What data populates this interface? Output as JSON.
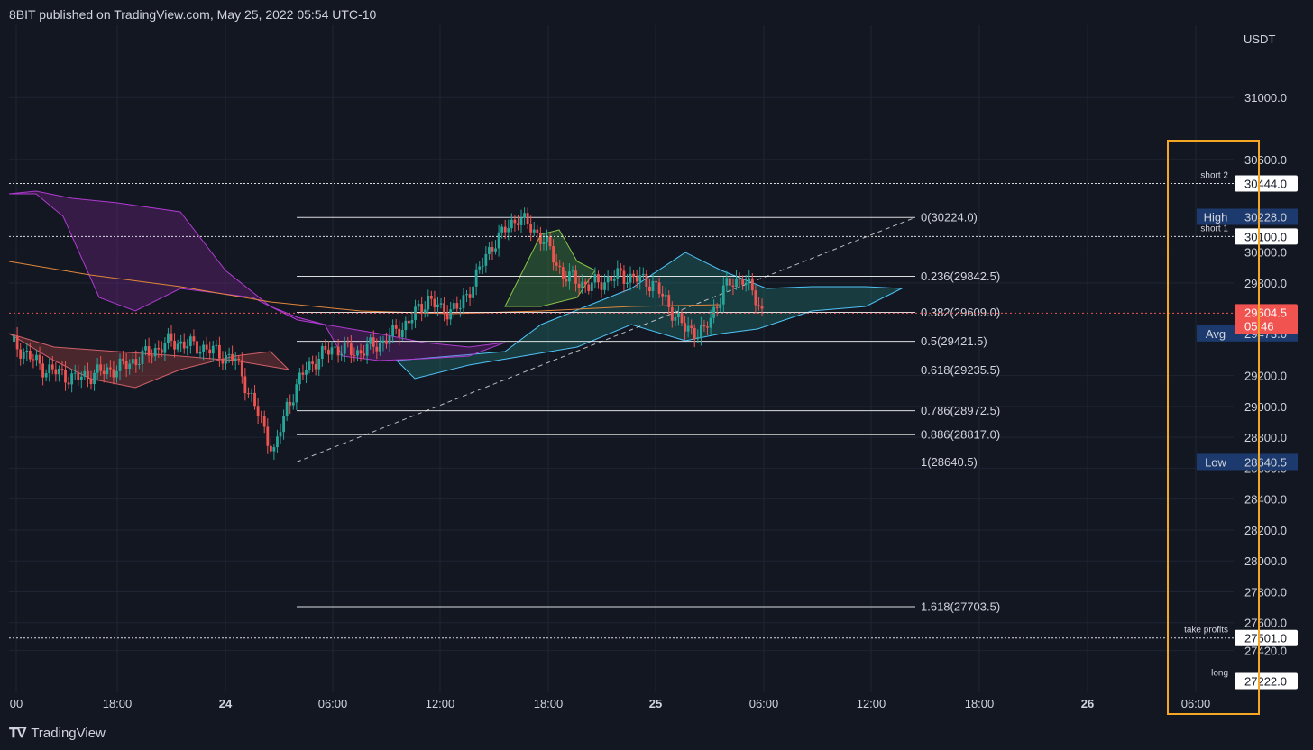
{
  "header": {
    "published": "8BIT published on TradingView.com, May 25, 2022 05:54 UTC-10"
  },
  "footer": {
    "brand": "TradingView",
    "logo_icon": "tradingview-logo-icon"
  },
  "colors": {
    "background": "#131722",
    "grid": "#1e2433",
    "text": "#d1d4dc",
    "up": "#26a69a",
    "down": "#ef5350",
    "fib": "#ffffff",
    "highlight_box": "#f5a623",
    "label_bg": "#1c3a6e",
    "price_tag": "#f05350"
  },
  "chart_data": {
    "type": "candlestick",
    "currency_label": "USDT",
    "ylim": [
      27100,
      31400
    ],
    "y_ticks": [
      "31000.0",
      "30600.0",
      "30000.0",
      "29800.0",
      "29200.0",
      "29000.0",
      "28800.0",
      "28600.0",
      "28400.0",
      "28200.0",
      "28000.0",
      "27800.0",
      "27600.0",
      "27420.0"
    ],
    "x_ticks": [
      {
        "label": "00",
        "bold": false
      },
      {
        "label": "18:00",
        "bold": false
      },
      {
        "label": "24",
        "bold": true
      },
      {
        "label": "06:00",
        "bold": false
      },
      {
        "label": "12:00",
        "bold": false
      },
      {
        "label": "18:00",
        "bold": false
      },
      {
        "label": "25",
        "bold": true
      },
      {
        "label": "06:00",
        "bold": false
      },
      {
        "label": "12:00",
        "bold": false
      },
      {
        "label": "18:00",
        "bold": false
      },
      {
        "label": "26",
        "bold": true
      },
      {
        "label": "06:00",
        "bold": false
      }
    ],
    "fib_levels": [
      {
        "ratio": "0",
        "price": 30224.0,
        "label": "0(30224.0)"
      },
      {
        "ratio": "0.236",
        "price": 29842.5,
        "label": "0.236(29842.5)"
      },
      {
        "ratio": "0.382",
        "price": 29609.0,
        "label": "0.382(29609.0)"
      },
      {
        "ratio": "0.5",
        "price": 29421.5,
        "label": "0.5(29421.5)"
      },
      {
        "ratio": "0.618",
        "price": 29235.5,
        "label": "0.618(29235.5)"
      },
      {
        "ratio": "0.786",
        "price": 28972.5,
        "label": "0.786(28972.5)"
      },
      {
        "ratio": "0.886",
        "price": 28817.0,
        "label": "0.886(28817.0)"
      },
      {
        "ratio": "1",
        "price": 28640.5,
        "label": "1(28640.5)"
      },
      {
        "ratio": "1.618",
        "price": 27703.5,
        "label": "1.618(27703.5)"
      }
    ],
    "horizontal_levels": [
      {
        "name": "short 2",
        "price": 30444.0,
        "label": "30444.0"
      },
      {
        "name": "short 1",
        "price": 30100.0,
        "label": "30100.0"
      },
      {
        "name": "take profits",
        "price": 27501.0,
        "label": "27501.0"
      },
      {
        "name": "long",
        "price": 27222.0,
        "label": "27222.0"
      }
    ],
    "stat_tags": [
      {
        "name": "High",
        "price": 30228.0,
        "label": "30228.0"
      },
      {
        "name": "Avg",
        "price": 29473.0,
        "label": "29473.0"
      },
      {
        "name": "Low",
        "price": 28640.5,
        "label": "28640.5"
      }
    ],
    "current_price": {
      "price": 29604.5,
      "label": "29604.5",
      "countdown": "05:46"
    },
    "close_path": [
      [
        0,
        29420
      ],
      [
        10,
        29250
      ],
      [
        20,
        29180
      ],
      [
        35,
        29260
      ],
      [
        50,
        29420
      ],
      [
        60,
        29380
      ],
      [
        70,
        29300
      ],
      [
        78,
        28900
      ],
      [
        82,
        28700
      ],
      [
        86,
        29000
      ],
      [
        92,
        29250
      ],
      [
        100,
        29380
      ],
      [
        108,
        29350
      ],
      [
        116,
        29420
      ],
      [
        124,
        29550
      ],
      [
        130,
        29700
      ],
      [
        134,
        29620
      ],
      [
        140,
        29640
      ],
      [
        150,
        30050
      ],
      [
        158,
        30230
      ],
      [
        166,
        30080
      ],
      [
        172,
        29850
      ],
      [
        180,
        29780
      ],
      [
        190,
        29850
      ],
      [
        200,
        29800
      ],
      [
        210,
        29500
      ],
      [
        216,
        29480
      ],
      [
        222,
        29760
      ],
      [
        228,
        29840
      ],
      [
        234,
        29620
      ]
    ]
  }
}
